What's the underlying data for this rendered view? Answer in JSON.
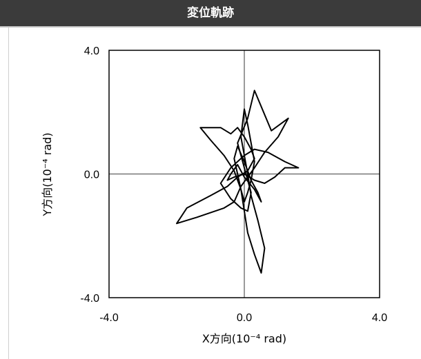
{
  "header": {
    "title": "変位軌跡"
  },
  "chart_data": {
    "type": "line",
    "title": "",
    "xlabel": "X方向(10⁻⁴ rad)",
    "ylabel": "Y方向(10⁻⁴ rad)",
    "xlim": [
      -4.0,
      4.0
    ],
    "ylim": [
      -4.0,
      4.0
    ],
    "x_tick_labels": [
      "-4.0",
      "0.0",
      "4.0"
    ],
    "y_tick_labels": [
      "4.0",
      "0.0",
      "-4.0"
    ],
    "x_ticks": [
      -4.0,
      0.0,
      4.0
    ],
    "y_ticks": [
      4.0,
      0.0,
      -4.0
    ],
    "grid": false,
    "zero_lines": true,
    "line_color": "#000000",
    "series": [
      {
        "x": [
          0.0,
          0.3,
          0.6,
          0.9,
          1.2,
          1.6,
          1.2,
          0.7,
          0.3,
          0.0,
          -0.4,
          -0.7,
          -0.4,
          -0.1,
          0.1,
          0.2,
          0.0,
          -0.2,
          0.1,
          0.3,
          0.8,
          1.3,
          1.0,
          0.6,
          0.3,
          -0.1,
          -0.3,
          -0.6,
          -1.4,
          -2.0,
          -1.7,
          -1.0,
          -0.5,
          -0.2,
          0.1,
          0.2,
          0.3,
          0.2,
          0.1,
          0.0,
          -0.2,
          -0.4,
          -0.7,
          -1.3,
          -1.0,
          -0.6,
          -0.3,
          -0.1,
          0.0,
          0.1,
          0.3,
          0.5,
          0.6,
          0.4,
          0.2,
          0.1,
          0.0,
          -0.1,
          0.0,
          0.1,
          0.2,
          0.3,
          0.2,
          0.1,
          0.0,
          -0.1,
          -0.2,
          -0.3,
          -0.2,
          0.0,
          0.2,
          0.4,
          0.5,
          0.3,
          0.0,
          -0.2,
          -0.4,
          -0.5,
          -0.3,
          0.0
        ],
        "y": [
          0.0,
          -0.2,
          -0.3,
          -0.1,
          0.2,
          0.2,
          0.4,
          0.7,
          0.8,
          0.6,
          0.2,
          -0.3,
          -0.8,
          -1.1,
          -1.2,
          -0.6,
          0.2,
          1.0,
          1.8,
          2.7,
          1.4,
          1.8,
          1.2,
          0.7,
          0.2,
          -0.4,
          -0.9,
          -1.1,
          -1.4,
          -1.6,
          -1.1,
          -0.7,
          -0.4,
          -0.1,
          0.1,
          0.3,
          0.5,
          0.8,
          1.0,
          1.2,
          1.5,
          1.3,
          1.5,
          1.5,
          1.1,
          0.6,
          0.1,
          -0.5,
          -1.2,
          -1.9,
          -2.6,
          -3.2,
          -2.4,
          -1.5,
          -0.7,
          0.0,
          0.6,
          1.2,
          2.1,
          1.6,
          1.0,
          0.4,
          -0.2,
          -0.6,
          -0.9,
          -0.5,
          0.0,
          0.5,
          0.9,
          0.4,
          -0.2,
          -0.6,
          -0.9,
          -0.5,
          -0.1,
          0.3,
          0.0,
          -0.2,
          -0.1,
          0.0
        ]
      }
    ]
  }
}
